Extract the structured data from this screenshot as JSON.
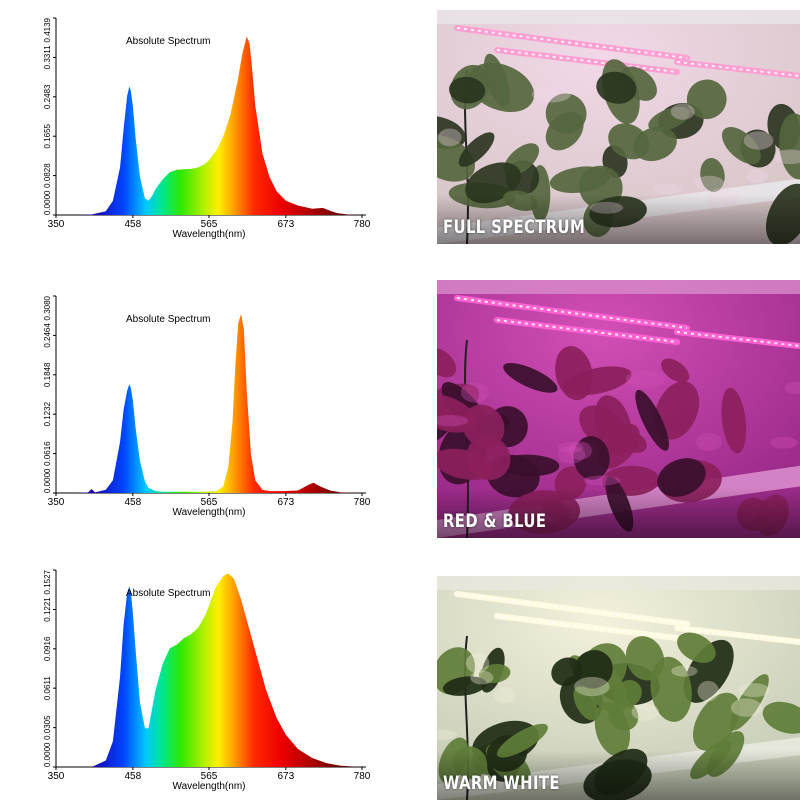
{
  "chart_data": [
    {
      "type": "area",
      "title": "Absolute Spectrum",
      "xlabel": "Wavelength(nm)",
      "ylabel": "",
      "xlim": [
        350,
        780
      ],
      "ylim": [
        0,
        0.4139
      ],
      "x_ticks": [
        "350",
        "458",
        "565",
        "673",
        "780"
      ],
      "y_ticks": [
        "0.0000",
        "0.0828",
        "0.1655",
        "0.2483",
        "0.3311",
        "0.4139"
      ],
      "x": [
        350,
        380,
        400,
        420,
        430,
        440,
        445,
        450,
        453,
        455,
        458,
        462,
        468,
        475,
        480,
        485,
        490,
        500,
        510,
        520,
        530,
        540,
        550,
        560,
        565,
        575,
        585,
        595,
        605,
        612,
        618,
        622,
        626,
        630,
        640,
        650,
        660,
        673,
        690,
        710,
        725,
        735,
        745,
        760,
        780
      ],
      "values": [
        0,
        0,
        0.001,
        0.008,
        0.03,
        0.1,
        0.18,
        0.25,
        0.27,
        0.262,
        0.23,
        0.16,
        0.08,
        0.035,
        0.03,
        0.04,
        0.055,
        0.075,
        0.09,
        0.095,
        0.096,
        0.097,
        0.1,
        0.108,
        0.115,
        0.135,
        0.165,
        0.21,
        0.28,
        0.34,
        0.375,
        0.36,
        0.3,
        0.23,
        0.13,
        0.08,
        0.05,
        0.03,
        0.02,
        0.013,
        0.015,
        0.009,
        0.004,
        0.001,
        0
      ]
    },
    {
      "type": "area",
      "title": "Absolute Spectrum",
      "xlabel": "Wavelength(nm)",
      "ylabel": "",
      "xlim": [
        350,
        780
      ],
      "ylim": [
        0,
        0.308
      ],
      "x_ticks": [
        "350",
        "458",
        "565",
        "673",
        "780"
      ],
      "y_ticks": [
        "0.0000",
        "0.0616",
        "0.1232",
        "0.1848",
        "0.2464",
        "0.3080"
      ],
      "x": [
        350,
        380,
        395,
        400,
        405,
        420,
        430,
        440,
        445,
        450,
        453,
        455,
        458,
        462,
        468,
        475,
        480,
        490,
        500,
        520,
        540,
        560,
        575,
        585,
        592,
        598,
        602,
        606,
        610,
        614,
        618,
        624,
        630,
        640,
        650,
        670,
        690,
        705,
        712,
        720,
        735,
        750,
        780
      ],
      "values": [
        0,
        0,
        0.001,
        0.006,
        0.001,
        0.005,
        0.02,
        0.08,
        0.13,
        0.16,
        0.17,
        0.165,
        0.145,
        0.1,
        0.05,
        0.018,
        0.008,
        0.003,
        0.002,
        0.002,
        0.002,
        0.002,
        0.003,
        0.01,
        0.04,
        0.11,
        0.2,
        0.265,
        0.28,
        0.255,
        0.16,
        0.06,
        0.02,
        0.005,
        0.003,
        0.003,
        0.004,
        0.013,
        0.016,
        0.011,
        0.004,
        0.001,
        0
      ]
    },
    {
      "type": "area",
      "title": "Absolute Spectrum",
      "xlabel": "Wavelength(nm)",
      "ylabel": "",
      "xlim": [
        350,
        780
      ],
      "ylim": [
        0,
        0.1527
      ],
      "x_ticks": [
        "350",
        "458",
        "565",
        "673",
        "780"
      ],
      "y_ticks": [
        "0.0000",
        "0.0305",
        "0.0611",
        "0.0916",
        "0.1221",
        "0.1527"
      ],
      "x": [
        350,
        400,
        420,
        430,
        440,
        445,
        450,
        453,
        455,
        458,
        462,
        468,
        475,
        480,
        485,
        490,
        500,
        510,
        520,
        530,
        540,
        550,
        560,
        565,
        575,
        585,
        592,
        600,
        610,
        620,
        630,
        645,
        660,
        673,
        690,
        710,
        730,
        750,
        780
      ],
      "values": [
        0,
        0,
        0.005,
        0.02,
        0.07,
        0.11,
        0.135,
        0.14,
        0.136,
        0.12,
        0.09,
        0.05,
        0.03,
        0.03,
        0.045,
        0.06,
        0.08,
        0.092,
        0.095,
        0.1,
        0.103,
        0.108,
        0.118,
        0.125,
        0.14,
        0.148,
        0.15,
        0.146,
        0.13,
        0.11,
        0.09,
        0.06,
        0.038,
        0.025,
        0.014,
        0.007,
        0.003,
        0.001,
        0
      ]
    }
  ],
  "photos": [
    {
      "label": "FULL SPECTRUM",
      "wall": "#d8c7c9",
      "glow": "#f2d8e8",
      "leaf": "#55663e",
      "leafdark": "#2b3520",
      "tube": "#ff9fd2",
      "shelf": "#e9e6ea"
    },
    {
      "label": "RED & BLUE",
      "wall": "#9c2b8a",
      "glow": "#d24fb6",
      "leaf": "#8b1f5c",
      "leafdark": "#3a0f2d",
      "tube": "#ff62d2",
      "shelf": "#d88ccb"
    },
    {
      "label": "WARM WHITE",
      "wall": "#c9cfb9",
      "glow": "#f3f1dc",
      "leaf": "#5f7d38",
      "leafdark": "#1f2b16",
      "tube": "#fffbe0",
      "shelf": "#e8e9df"
    }
  ]
}
